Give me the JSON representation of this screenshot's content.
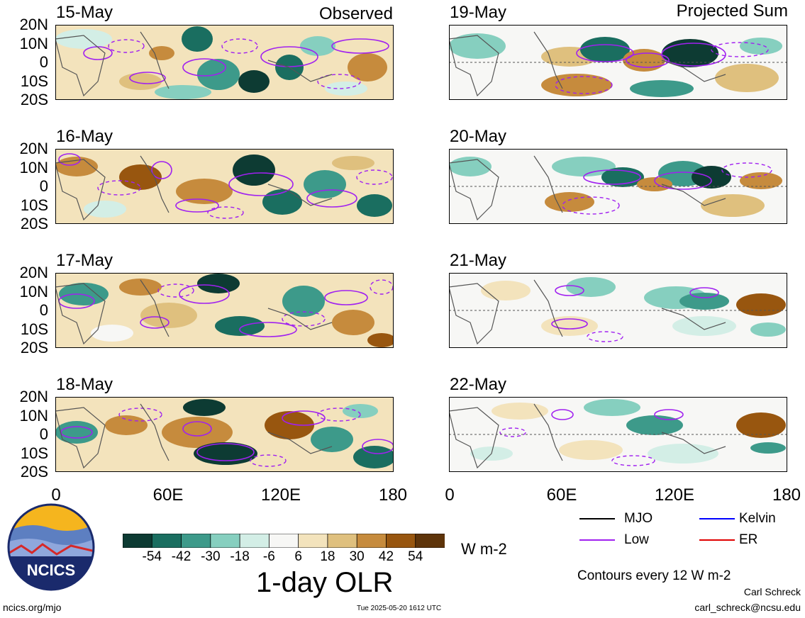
{
  "panels": {
    "left_tag": "Observed",
    "right_tag": "Projected Sum",
    "left_dates": [
      "15-May",
      "16-May",
      "17-May",
      "18-May"
    ],
    "right_dates": [
      "19-May",
      "20-May",
      "21-May",
      "22-May"
    ],
    "lat_labels": [
      "20N",
      "10N",
      "0",
      "10S",
      "20S"
    ],
    "lon_labels": [
      "0",
      "60E",
      "120E",
      "180"
    ]
  },
  "colorbar": {
    "labels": [
      "-54",
      "-42",
      "-30",
      "-18",
      "-6",
      "6",
      "18",
      "30",
      "42",
      "54"
    ],
    "colors": [
      "#0d3b33",
      "#1a6e60",
      "#3d9a8a",
      "#86cfbf",
      "#d3eee6",
      "#f7f7f5",
      "#f3e3bc",
      "#dfc07e",
      "#c68b3d",
      "#98560f",
      "#5e340a"
    ],
    "units": "W m-2",
    "title": "1-day OLR"
  },
  "legend": {
    "items": [
      {
        "label": "MJO",
        "color": "#000000"
      },
      {
        "label": "Kelvin",
        "color": "#0000ff"
      },
      {
        "label": "Low",
        "color": "#a020f0"
      },
      {
        "label": "ER",
        "color": "#e00000"
      }
    ],
    "contours_note": "Contours every 12 W m-2"
  },
  "logo": {
    "text": "NCICS"
  },
  "footer": {
    "url": "ncics.org/mjo",
    "timestamp": "Tue 2025-05-20 1612 UTC",
    "author": "Carl Schreck",
    "email": "carl_schreck@ncsu.edu"
  }
}
